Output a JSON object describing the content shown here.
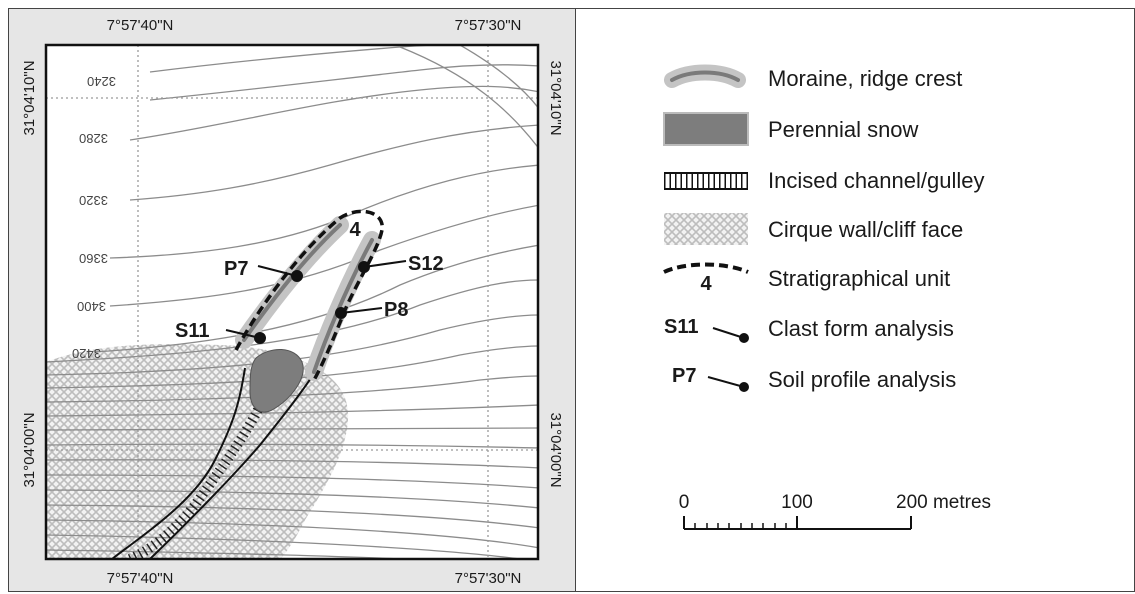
{
  "map": {
    "lon_labels": [
      "7°57'40\"N",
      "7°57'30\"N"
    ],
    "lat_labels": [
      "31°04'10\"N",
      "31°04'00\"N"
    ],
    "contour_labels": [
      "3240",
      "3280",
      "3320",
      "3360",
      "3400",
      "3420"
    ],
    "unit_label": "4",
    "sites": [
      {
        "label": "P7"
      },
      {
        "label": "S12"
      },
      {
        "label": "P8"
      },
      {
        "label": "S11"
      }
    ]
  },
  "legend": {
    "items": [
      {
        "text": "Moraine, ridge crest",
        "icon": "moraine-ridge-crest-icon"
      },
      {
        "text": "Perennial snow",
        "icon": "perennial-snow-icon"
      },
      {
        "text": "Incised channel/gulley",
        "icon": "incised-channel-icon"
      },
      {
        "text": "Cirque wall/cliff face",
        "icon": "cirque-wall-icon"
      },
      {
        "text": "Stratigraphical unit",
        "icon": "stratigraphical-unit-icon",
        "symbol_label": "4"
      },
      {
        "text": "Clast form analysis",
        "icon": "clast-form-icon",
        "symbol_label": "S11"
      },
      {
        "text": "Soil profile analysis",
        "icon": "soil-profile-icon",
        "symbol_label": "P7"
      }
    ]
  },
  "scale_bar": {
    "tick_labels": [
      "0",
      "100",
      "200 metres"
    ]
  },
  "colors": {
    "panel_bg": "#e6e6e6",
    "contour": "#8c8c8c",
    "moraine_outer": "#c4c4c4",
    "moraine_inner": "#7a7a7a",
    "snow": "#7d7d7d"
  }
}
